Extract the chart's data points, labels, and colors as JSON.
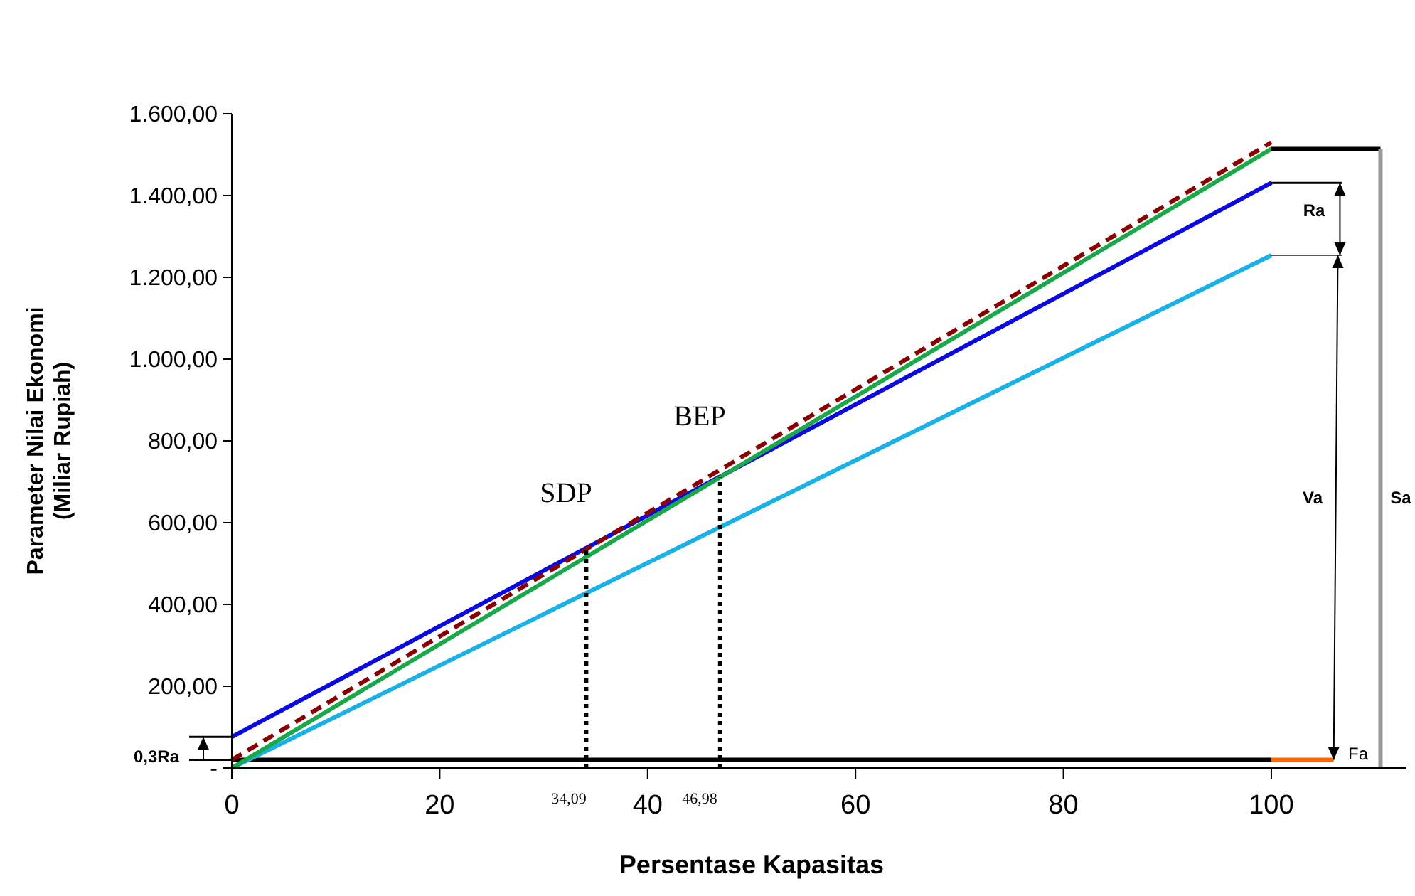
{
  "chart_data": {
    "type": "line",
    "xlabel": "Persentase Kapasitas",
    "ylabel": "Parameter Nilai Ekonomi\n(Miliar Rupiah)",
    "xlim": [
      0,
      113
    ],
    "xticks": [
      0,
      20,
      40,
      60,
      80,
      100
    ],
    "ylim": [
      0,
      1600
    ],
    "yticks": [
      {
        "value": 0,
        "label": "-"
      },
      {
        "value": 200,
        "label": "200,00"
      },
      {
        "value": 400,
        "label": "400,00"
      },
      {
        "value": 600,
        "label": "600,00"
      },
      {
        "value": 800,
        "label": "800,00"
      },
      {
        "value": 1000,
        "label": "1.000,00"
      },
      {
        "value": 1200,
        "label": "1.200,00"
      },
      {
        "value": 1400,
        "label": "1.400,00"
      },
      {
        "value": 1600,
        "label": "1.600,00"
      }
    ],
    "grid": false,
    "series": [
      {
        "color": "#000000",
        "x": [
          0,
          100
        ],
        "values": [
          20,
          20
        ]
      },
      {
        "color": "#ff6600",
        "x": [
          100,
          106
        ],
        "values": [
          20,
          20
        ]
      },
      {
        "color": "#1ab0e8",
        "x": [
          0,
          100
        ],
        "values": [
          0,
          1254
        ]
      },
      {
        "color": "#0a0ae0",
        "x": [
          0,
          100
        ],
        "values": [
          76,
          1431
        ]
      },
      {
        "color": "#1aa84a",
        "x": [
          0,
          100
        ],
        "values": [
          0,
          1514
        ]
      },
      {
        "color": "#8b0000",
        "x": [
          0,
          100
        ],
        "values": [
          20,
          1530
        ],
        "line_style": "dashed"
      },
      {
        "color": "#000000",
        "x": [
          34.09,
          34.09
        ],
        "values": [
          0,
          538
        ],
        "line_style": "dotted"
      },
      {
        "color": "#000000",
        "x": [
          46.98,
          46.98
        ],
        "values": [
          0,
          711
        ],
        "line_style": "dotted"
      },
      {
        "color": "#000000",
        "x": [
          100,
          110.5
        ],
        "values": [
          1514,
          1514
        ]
      },
      {
        "color": "#999999",
        "x": [
          110.5,
          110.5
        ],
        "values": [
          1514,
          0
        ]
      }
    ],
    "annotations": [
      "SDP",
      "BEP",
      "34,09",
      "46,98",
      "Ra",
      "Va",
      "Sa",
      "Fa",
      "0,3Ra"
    ]
  }
}
